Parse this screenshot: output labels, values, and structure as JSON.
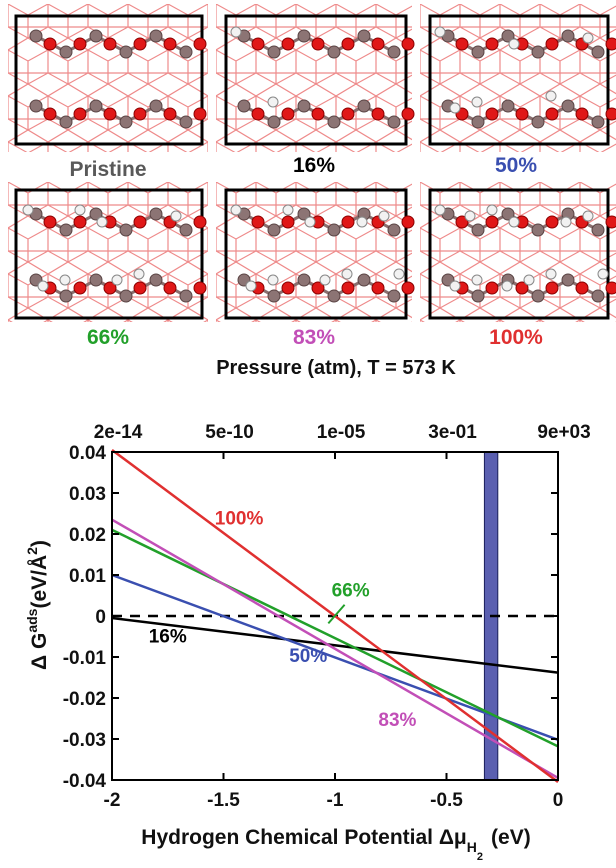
{
  "panels": [
    {
      "caption": "Pristine",
      "color": "#595959",
      "hydrogens": 0
    },
    {
      "caption": "16%",
      "color": "#000000",
      "hydrogens": 2
    },
    {
      "caption": "50%",
      "color": "#3a4fb0",
      "hydrogens": 6
    },
    {
      "caption": "66%",
      "color": "#22a02a",
      "hydrogens": 8
    },
    {
      "caption": "83%",
      "color": "#c24fb7",
      "hydrogens": 10
    },
    {
      "caption": "100%",
      "color": "#e03030",
      "hydrogens": 12
    }
  ],
  "chart_data": {
    "type": "line",
    "xlabel_main": "Hydrogen Chemical Potential Δμ",
    "xlabel_sub": "H",
    "xlabel_subsub": "2",
    "xlabel_unit": "(eV)",
    "ylabel_prefix": "Δ G",
    "ylabel_sup": "ads",
    "ylabel_unit": "(eV/Å",
    "ylabel_unit_sup": "2",
    "ylabel_close": ")",
    "top_axis_label": "Pressure (atm), T = 573 K",
    "xlim": [
      -2,
      0
    ],
    "ylim": [
      -0.04,
      0.04
    ],
    "x_ticks": [
      -2,
      -1.5,
      -1,
      -0.5,
      0
    ],
    "x_tick_labels": [
      "-2",
      "-1.5",
      "-1",
      "-0.5",
      "0"
    ],
    "y_ticks": [
      0.04,
      0.03,
      0.02,
      0.01,
      0,
      -0.01,
      -0.02,
      -0.03,
      -0.04
    ],
    "y_tick_labels": [
      "0.04",
      "0.03",
      "0.02",
      "0.01",
      "0",
      "-0.01",
      "-0.02",
      "-0.03",
      "-0.04"
    ],
    "top_ticks_x": [
      -2,
      -1.5,
      -1,
      -0.5,
      0
    ],
    "top_tick_labels": [
      "2e-14",
      "5e-10",
      "1e-05",
      "3e-01",
      "9e+03"
    ],
    "shaded_band": {
      "x_range": [
        -0.33,
        -0.27
      ],
      "color": "#5a5fb0"
    },
    "reference_line": {
      "y": 0,
      "style": "dashed",
      "color": "#000000"
    },
    "series": [
      {
        "name": "16%",
        "color": "#000000",
        "x": [
          -2,
          0
        ],
        "y": [
          -0.0005,
          -0.0138
        ],
        "label_at": [
          -1.75,
          -0.0065
        ]
      },
      {
        "name": "50%",
        "color": "#3a4fb0",
        "x": [
          -2,
          0
        ],
        "y": [
          0.01,
          -0.0302
        ],
        "label_at": [
          -1.12,
          -0.0112
        ]
      },
      {
        "name": "66%",
        "color": "#22a02a",
        "x": [
          -2,
          0
        ],
        "y": [
          0.021,
          -0.0318
        ],
        "label_at": [
          -0.93,
          0.0047
        ]
      },
      {
        "name": "83%",
        "color": "#c24fb7",
        "x": [
          -2,
          0
        ],
        "y": [
          0.0235,
          -0.0395
        ],
        "label_at": [
          -0.72,
          -0.0268
        ]
      },
      {
        "name": "100%",
        "color": "#e03030",
        "x": [
          -2,
          0
        ],
        "y": [
          0.0405,
          -0.0405
        ],
        "label_at": [
          -1.43,
          0.0223
        ]
      }
    ]
  }
}
